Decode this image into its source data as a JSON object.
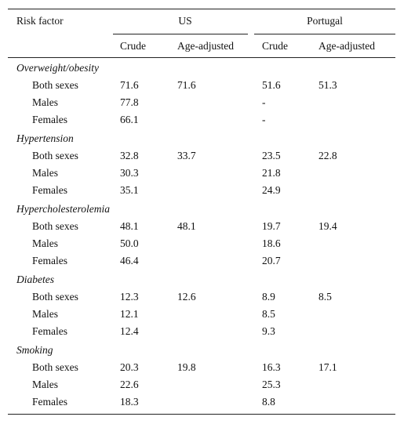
{
  "table": {
    "header": {
      "risk_factor": "Risk factor",
      "countries": [
        "US",
        "Portugal"
      ],
      "subheaders": [
        "Crude",
        "Age-adjusted",
        "Crude",
        "Age-adjusted"
      ]
    },
    "groups": [
      {
        "name": "Overweight/obesity",
        "rows": [
          {
            "label": "Both sexes",
            "cells": [
              "71.6",
              "71.6",
              "51.6",
              "51.3"
            ]
          },
          {
            "label": "Males",
            "cells": [
              "77.8",
              null,
              "-",
              null
            ]
          },
          {
            "label": "Females",
            "cells": [
              "66.1",
              null,
              "-",
              null
            ]
          }
        ]
      },
      {
        "name": "Hypertension",
        "rows": [
          {
            "label": "Both sexes",
            "cells": [
              "32.8",
              "33.7",
              "23.5",
              "22.8"
            ]
          },
          {
            "label": "Males",
            "cells": [
              "30.3",
              null,
              "21.8",
              null
            ]
          },
          {
            "label": "Females",
            "cells": [
              "35.1",
              null,
              "24.9",
              null
            ]
          }
        ]
      },
      {
        "name": "Hypercholesterolemia",
        "rows": [
          {
            "label": "Both sexes",
            "cells": [
              "48.1",
              "48.1",
              "19.7",
              "19.4"
            ]
          },
          {
            "label": "Males",
            "cells": [
              "50.0",
              null,
              "18.6",
              null
            ]
          },
          {
            "label": "Females",
            "cells": [
              "46.4",
              null,
              "20.7",
              null
            ]
          }
        ]
      },
      {
        "name": "Diabetes",
        "rows": [
          {
            "label": "Both sexes",
            "cells": [
              "12.3",
              "12.6",
              "8.9",
              "8.5"
            ]
          },
          {
            "label": "Males",
            "cells": [
              "12.1",
              null,
              "8.5",
              null
            ]
          },
          {
            "label": "Females",
            "cells": [
              "12.4",
              null,
              "9.3",
              null
            ]
          }
        ]
      },
      {
        "name": "Smoking",
        "rows": [
          {
            "label": "Both sexes",
            "cells": [
              "20.3",
              "19.8",
              "16.3",
              "17.1"
            ]
          },
          {
            "label": "Males",
            "cells": [
              "22.6",
              null,
              "25.3",
              null
            ]
          },
          {
            "label": "Females",
            "cells": [
              "18.3",
              null,
              "8.8",
              null
            ]
          }
        ]
      }
    ]
  }
}
